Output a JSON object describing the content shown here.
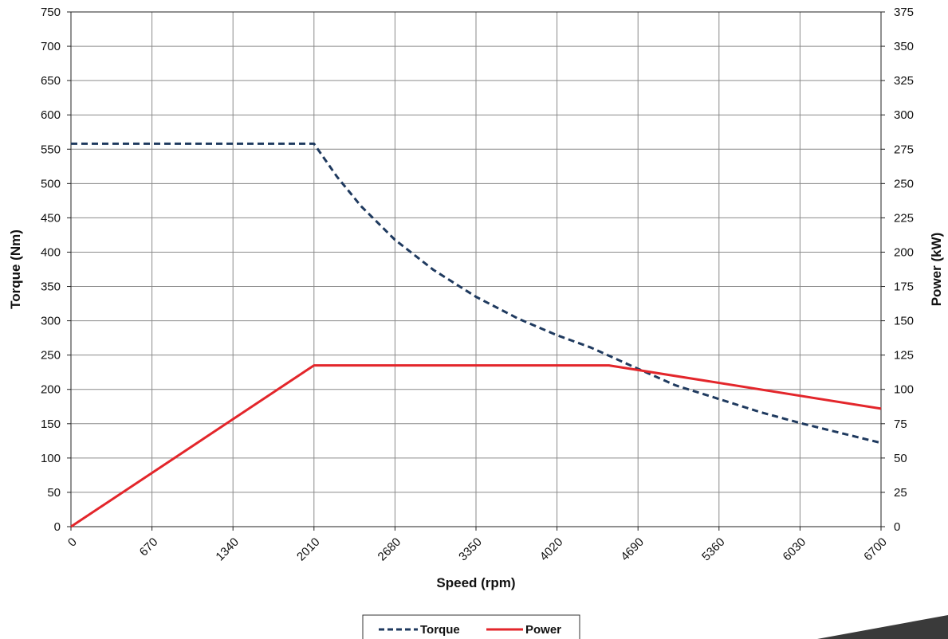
{
  "chart_data": {
    "type": "line",
    "xlabel": "Speed (rpm)",
    "ylabel": "Torque (Nm)",
    "y2label": "Power (kW)",
    "x_ticks": [
      0,
      670,
      1340,
      2010,
      2680,
      3350,
      4020,
      4690,
      5360,
      6030,
      6700
    ],
    "xlim": [
      0,
      6700
    ],
    "ylim": [
      0,
      750
    ],
    "y_ticks": [
      0,
      50,
      100,
      150,
      200,
      250,
      300,
      350,
      400,
      450,
      500,
      550,
      600,
      650,
      700,
      750
    ],
    "y2lim": [
      0,
      375
    ],
    "y2_ticks": [
      0,
      25,
      50,
      75,
      100,
      125,
      150,
      175,
      200,
      225,
      250,
      275,
      300,
      325,
      350,
      375
    ],
    "grid": true,
    "legend_position": "bottom",
    "series": [
      {
        "name": "Torque",
        "axis": "left",
        "color": "#1f3a5f",
        "style": "dashed",
        "x": [
          0,
          2010,
          2200,
          2400,
          2680,
          3000,
          3350,
          3700,
          4020,
          4300,
          4690,
          5000,
          5360,
          5700,
          6030,
          6400,
          6700
        ],
        "y": [
          558,
          558,
          510,
          467,
          418,
          374,
          335,
          303,
          279,
          261,
          230,
          206,
          186,
          167,
          151,
          135,
          122
        ]
      },
      {
        "name": "Power",
        "axis": "right",
        "color": "#e3262b",
        "style": "solid",
        "x": [
          0,
          2010,
          4450,
          6700
        ],
        "y": [
          0,
          117.5,
          117.5,
          86
        ]
      }
    ]
  }
}
